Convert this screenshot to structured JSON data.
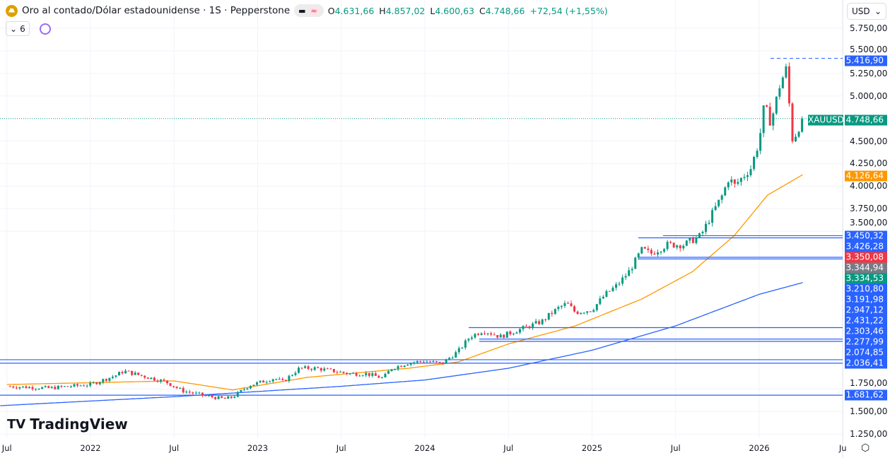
{
  "header": {
    "symbol_icon": "gold-bars-icon",
    "title": "Oro al contado/Dólar estadounidense · 1S · Pepperstone",
    "ohlc": {
      "o_label": "O",
      "o": "4.631,66",
      "h_label": "H",
      "h": "4.857,02",
      "l_label": "L",
      "l": "4.600,63",
      "c_label": "C",
      "c": "4.748,66",
      "change": "+72,54 (+1,55%)"
    },
    "indicators_collapse": "6",
    "currency": "USD"
  },
  "branding": {
    "logo": "TradingView"
  },
  "time_axis": [
    {
      "label": "Jul",
      "t": 2021.5
    },
    {
      "label": "2022",
      "t": 2022.0
    },
    {
      "label": "Jul",
      "t": 2022.5
    },
    {
      "label": "2023",
      "t": 2023.0
    },
    {
      "label": "Jul",
      "t": 2023.5
    },
    {
      "label": "2024",
      "t": 2024.0
    },
    {
      "label": "Jul",
      "t": 2024.5
    },
    {
      "label": "2025",
      "t": 2025.0
    },
    {
      "label": "Jul",
      "t": 2025.5
    },
    {
      "label": "2026",
      "t": 2026.0
    },
    {
      "label": "Ju",
      "t": 2026.5
    }
  ],
  "price_axis": [
    "5.750,00",
    "5.500,00",
    "5.250,00",
    "5.000,00",
    "4.500,00",
    "4.250,00",
    "4.000,00",
    "3.750,00",
    "3.500,00",
    "1.750,00",
    "1.500,00",
    "1.250,00"
  ],
  "price_axis_values": [
    5750,
    5500,
    5250,
    5000,
    4500,
    4250,
    4000,
    3750,
    3500,
    1750,
    1500,
    1250
  ],
  "price_tags": [
    {
      "label": "",
      "value": "5.416,90",
      "color": "#2962ff"
    },
    {
      "label": "XAUUSD",
      "value": "4.748,66",
      "color": "#089981"
    },
    {
      "label": "",
      "value": "4.126,64",
      "color": "#ff9800"
    },
    {
      "value": "3.450,32",
      "color": "#2962ff"
    },
    {
      "value": "3.426,28",
      "color": "#2962ff"
    },
    {
      "value": "3.350,08",
      "color": "#f23645"
    },
    {
      "value": "3.344,94",
      "color": "#787b86"
    },
    {
      "value": "3.334,53",
      "color": "#089981"
    },
    {
      "value": "3.210,80",
      "color": "#2962ff"
    },
    {
      "value": "3.191,98",
      "color": "#2962ff"
    },
    {
      "value": "2.947,12",
      "color": "#2962ff"
    },
    {
      "value": "2.431,22",
      "color": "#2962ff"
    },
    {
      "value": "2.303,46",
      "color": "#2962ff"
    },
    {
      "value": "2.277,99",
      "color": "#2962ff"
    },
    {
      "value": "2.074,85",
      "color": "#2962ff"
    },
    {
      "value": "2.036,41",
      "color": "#2962ff"
    },
    {
      "value": "1.681,62",
      "color": "#2962ff"
    }
  ],
  "horizontal_levels": [
    3450.32,
    3426.28,
    3210.8,
    3191.98,
    2431.22,
    2303.46,
    2277.99,
    2074.85,
    2036.41,
    1681.62
  ],
  "colors": {
    "up": "#089981",
    "down": "#f23645",
    "ma_fast": "#ff9800",
    "ma_slow": "#2962ff"
  },
  "chart_data": {
    "type": "candlestick",
    "last_close": 4748.66,
    "high_marker": 5416.9,
    "closes": [
      [
        2021.5,
        1780
      ],
      [
        2021.75,
        1760
      ],
      [
        2022.0,
        1800
      ],
      [
        2022.15,
        1900
      ],
      [
        2022.2,
        1950
      ],
      [
        2022.3,
        1900
      ],
      [
        2022.45,
        1830
      ],
      [
        2022.55,
        1730
      ],
      [
        2022.7,
        1670
      ],
      [
        2022.8,
        1640
      ],
      [
        2022.85,
        1660
      ],
      [
        2022.95,
        1790
      ],
      [
        2023.1,
        1870
      ],
      [
        2023.15,
        1830
      ],
      [
        2023.25,
        1980
      ],
      [
        2023.35,
        1980
      ],
      [
        2023.45,
        1950
      ],
      [
        2023.55,
        1920
      ],
      [
        2023.65,
        1920
      ],
      [
        2023.75,
        1870
      ],
      [
        2023.8,
        1980
      ],
      [
        2023.9,
        2040
      ],
      [
        2024.0,
        2060
      ],
      [
        2024.1,
        2030
      ],
      [
        2024.2,
        2170
      ],
      [
        2024.27,
        2330
      ],
      [
        2024.35,
        2400
      ],
      [
        2024.45,
        2330
      ],
      [
        2024.55,
        2400
      ],
      [
        2024.6,
        2430
      ],
      [
        2024.7,
        2500
      ],
      [
        2024.75,
        2580
      ],
      [
        2024.8,
        2650
      ],
      [
        2024.85,
        2700
      ],
      [
        2024.9,
        2600
      ],
      [
        2025.0,
        2630
      ],
      [
        2025.08,
        2800
      ],
      [
        2025.15,
        2900
      ],
      [
        2025.22,
        3050
      ],
      [
        2025.3,
        3300
      ],
      [
        2025.35,
        3250
      ],
      [
        2025.45,
        3350
      ],
      [
        2025.55,
        3350
      ],
      [
        2025.65,
        3450
      ],
      [
        2025.72,
        3700
      ],
      [
        2025.78,
        3900
      ],
      [
        2025.82,
        4100
      ],
      [
        2025.85,
        4000
      ],
      [
        2025.95,
        4200
      ],
      [
        2026.0,
        4500
      ],
      [
        2026.03,
        4900
      ],
      [
        2026.07,
        4700
      ],
      [
        2026.12,
        5100
      ],
      [
        2026.16,
        5300
      ],
      [
        2026.2,
        4500
      ],
      [
        2026.26,
        4748.66
      ]
    ],
    "ma_fast": [
      [
        2021.5,
        1800
      ],
      [
        2022.5,
        1840
      ],
      [
        2022.85,
        1740
      ],
      [
        2023.3,
        1880
      ],
      [
        2023.9,
        1980
      ],
      [
        2024.2,
        2050
      ],
      [
        2024.5,
        2250
      ],
      [
        2024.9,
        2450
      ],
      [
        2025.3,
        2750
      ],
      [
        2025.6,
        3050
      ],
      [
        2025.85,
        3450
      ],
      [
        2026.05,
        3900
      ],
      [
        2026.26,
        4126.64
      ]
    ],
    "ma_slow": [
      [
        2021.46,
        1565
      ],
      [
        2022.5,
        1665
      ],
      [
        2023.5,
        1780
      ],
      [
        2024.0,
        1850
      ],
      [
        2024.5,
        1980
      ],
      [
        2025.0,
        2180
      ],
      [
        2025.5,
        2450
      ],
      [
        2026.0,
        2800
      ],
      [
        2026.26,
        2930
      ]
    ]
  }
}
